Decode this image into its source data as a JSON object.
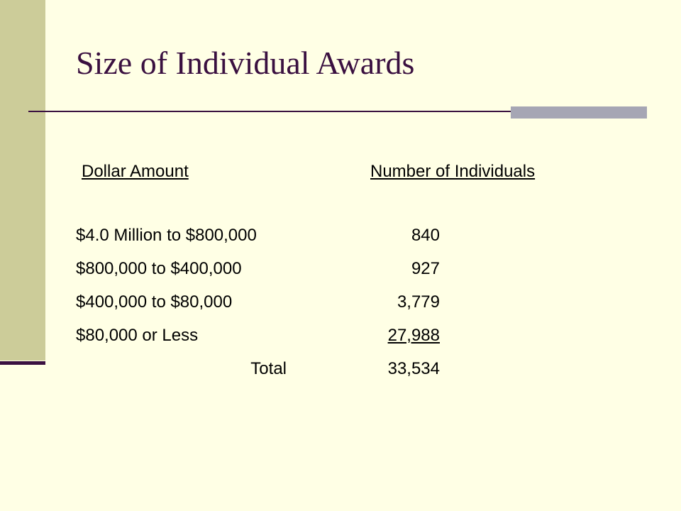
{
  "title": "Size of Individual Awards",
  "table": {
    "header": [
      "Dollar Amount",
      "Number of Individuals"
    ],
    "rows": [
      [
        "$4.0 Million to $800,000",
        "840"
      ],
      [
        "$800,000 to $400,000",
        "927"
      ],
      [
        "$400,000 to $80,000",
        "3,779"
      ],
      [
        "$80,000 or Less",
        "27,988"
      ]
    ],
    "total": [
      "Total",
      "33,534"
    ]
  }
}
